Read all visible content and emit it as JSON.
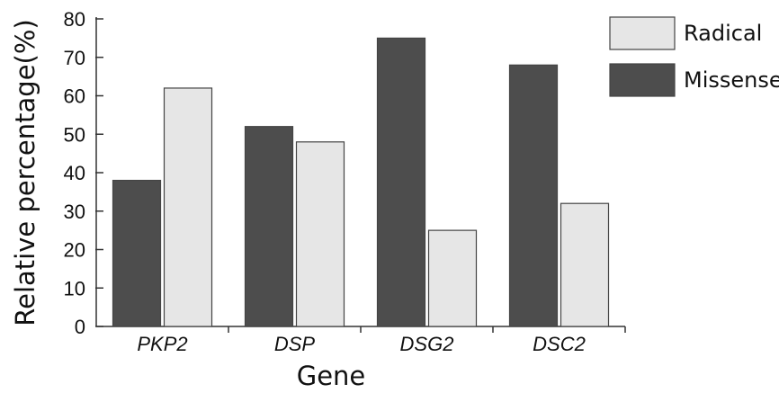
{
  "chart_data": {
    "type": "bar",
    "title": "",
    "xlabel": "Gene",
    "ylabel": "Relative percentage(%)",
    "categories": [
      "PKP2",
      "DSP",
      "DSG2",
      "DSC2"
    ],
    "series": [
      {
        "name": "Missense",
        "values": [
          38,
          52,
          75,
          68
        ],
        "color": "#4d4d4d"
      },
      {
        "name": "Radical",
        "values": [
          62,
          48,
          25,
          32
        ],
        "color": "#e6e6e6"
      }
    ],
    "ylim": [
      0,
      80
    ],
    "yticks": [
      0,
      10,
      20,
      30,
      40,
      50,
      60,
      70,
      80
    ],
    "grid": false,
    "legend": {
      "placement": "top-right",
      "entries": [
        {
          "label": "Radical",
          "series": "Radical"
        },
        {
          "label": "Missense",
          "series": "Missense"
        }
      ]
    }
  }
}
